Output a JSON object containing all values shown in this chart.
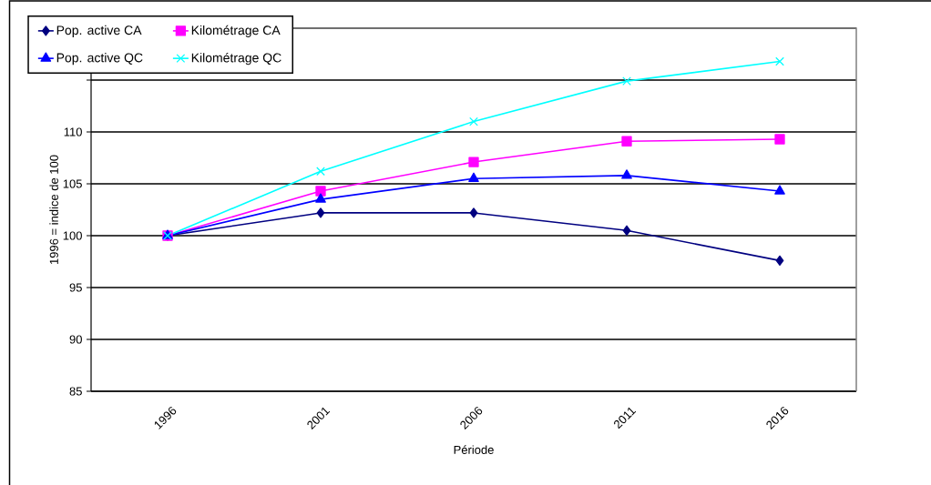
{
  "chart_data": {
    "type": "line",
    "xlabel": "Période",
    "ylabel": "1996 = indice de 100",
    "categories": [
      "1996",
      "2001",
      "2006",
      "2011",
      "2016"
    ],
    "series": [
      {
        "name": "Pop. active CA",
        "color": "#000080",
        "marker": "diamond",
        "values": [
          100,
          102.2,
          102.2,
          100.5,
          97.6
        ]
      },
      {
        "name": "Kilométrage CA",
        "color": "#ff00ff",
        "marker": "square",
        "values": [
          100,
          104.3,
          107.1,
          109.1,
          109.3
        ]
      },
      {
        "name": "Pop. active QC",
        "color": "#0000ff",
        "marker": "triangle",
        "values": [
          100,
          103.5,
          105.5,
          105.8,
          104.3
        ]
      },
      {
        "name": "Kilométrage QC",
        "color": "#00ffff",
        "marker": "cross",
        "values": [
          100,
          106.2,
          111,
          114.9,
          116.8
        ]
      }
    ],
    "ylim": [
      85,
      120
    ],
    "yticks": [
      85,
      90,
      95,
      100,
      105,
      110,
      {
        "value": 115,
        "label": null
      },
      {
        "value": 120,
        "label": null
      }
    ],
    "grid": "y",
    "legend": "top left"
  }
}
